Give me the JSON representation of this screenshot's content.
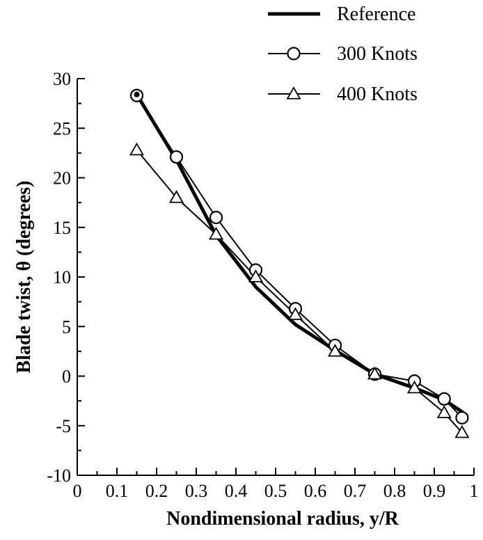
{
  "chart_data": {
    "type": "line",
    "title": "",
    "xlabel": "Nondimensional radius, y/R",
    "ylabel": "Blade twist, θ  (degrees)",
    "xlim": [
      0,
      1
    ],
    "ylim": [
      -10,
      30
    ],
    "xticks": [
      0,
      0.1,
      0.2,
      0.3,
      0.4,
      0.5,
      0.6,
      0.7,
      0.8,
      0.9,
      1.0
    ],
    "xtick_labels": [
      "0",
      "0.1",
      "0.2",
      "0.3",
      "0.4",
      "0.5",
      "0.6",
      "0.7",
      "0.8",
      "0.9",
      "1"
    ],
    "yticks": [
      -10,
      -5,
      0,
      5,
      10,
      15,
      20,
      25,
      30
    ],
    "ytick_labels": [
      "-10",
      "-5",
      "0",
      "5",
      "10",
      "15",
      "20",
      "25",
      "30"
    ],
    "grid": false,
    "legend_position": "top-right",
    "series": [
      {
        "name": "Reference",
        "marker": "none",
        "style": "thick",
        "color": "#000000",
        "x": [
          0.15,
          0.25,
          0.35,
          0.45,
          0.55,
          0.65,
          0.75,
          0.85,
          0.925,
          0.97
        ],
        "y": [
          28.4,
          21.8,
          14.2,
          9.0,
          5.2,
          2.6,
          0.2,
          -1.2,
          -2.4,
          -3.6
        ]
      },
      {
        "name": "300 Knots",
        "marker": "circle",
        "style": "thin",
        "color": "#000000",
        "x": [
          0.15,
          0.25,
          0.35,
          0.45,
          0.55,
          0.65,
          0.75,
          0.85,
          0.925,
          0.97
        ],
        "y": [
          28.3,
          22.1,
          16.0,
          10.7,
          6.8,
          3.1,
          0.2,
          -0.5,
          -2.3,
          -4.2
        ]
      },
      {
        "name": "400 Knots",
        "marker": "triangle",
        "style": "thin",
        "color": "#000000",
        "x": [
          0.15,
          0.25,
          0.35,
          0.45,
          0.55,
          0.65,
          0.75,
          0.85,
          0.925,
          0.97
        ],
        "y": [
          22.8,
          18.0,
          14.3,
          10.0,
          6.2,
          2.5,
          0.2,
          -1.2,
          -3.7,
          -5.7
        ]
      }
    ]
  }
}
